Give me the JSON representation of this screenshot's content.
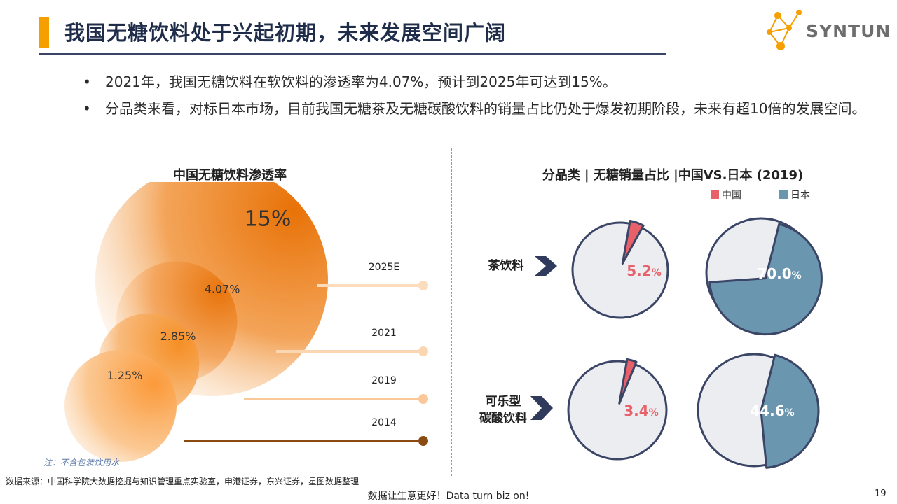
{
  "header": {
    "title": "我国无糖饮料处于兴起初期，未来发展空间广阔",
    "logo_text": "SYNTUN",
    "accent_color": "#f5a000"
  },
  "bullets": [
    "2021年，我国无糖饮料在软饮料的渗透率为4.07%，预计到2025年可达到15%。",
    "分品类来看，对标日本市场，目前我国无糖茶及无糖碳酸饮料的销量占比仍处于爆发初期阶段，未来有超10倍的发展空间。"
  ],
  "left_chart": {
    "title": "中国无糖饮料渗透率",
    "note": "注：不含包装饮用水"
  },
  "right_chart": {
    "title": "分品类 | 无糖销量占比 |中国VS.日本 (2019)",
    "legend_china": "中国",
    "legend_japan": "日本",
    "row1_label": "茶饮料",
    "row2_label_line1": "可乐型",
    "row2_label_line2": "碳酸饮料"
  },
  "chart_data": [
    {
      "type": "bubble",
      "title": "中国无糖饮料渗透率",
      "categories": [
        "2014",
        "2019",
        "2021",
        "2025E"
      ],
      "values": [
        1.25,
        2.85,
        4.07,
        15
      ],
      "value_labels": [
        "1.25%",
        "2.85%",
        "4.07%",
        "15%"
      ],
      "unit": "%"
    },
    {
      "type": "pie",
      "title": "分品类 | 无糖销量占比 |中国VS.日本 (2019)",
      "categories": [
        "茶饮料",
        "可乐型碳酸饮料"
      ],
      "series": [
        {
          "name": "中国",
          "values": [
            5.2,
            3.4
          ],
          "labels": [
            "5.2%",
            "3.4%"
          ],
          "color": "#e8606a"
        },
        {
          "name": "日本",
          "values": [
            70.0,
            44.6
          ],
          "labels": [
            "70.0%",
            "44.6%"
          ],
          "color": "#6a96b0"
        }
      ]
    }
  ],
  "footer": {
    "source": "数据来源：中国科学院大数据挖掘与知识管理重点实验室，申港证券，东兴证券，星图数据整理",
    "slogan": "数据让生意更好！Data turn biz on!",
    "page": "19"
  }
}
